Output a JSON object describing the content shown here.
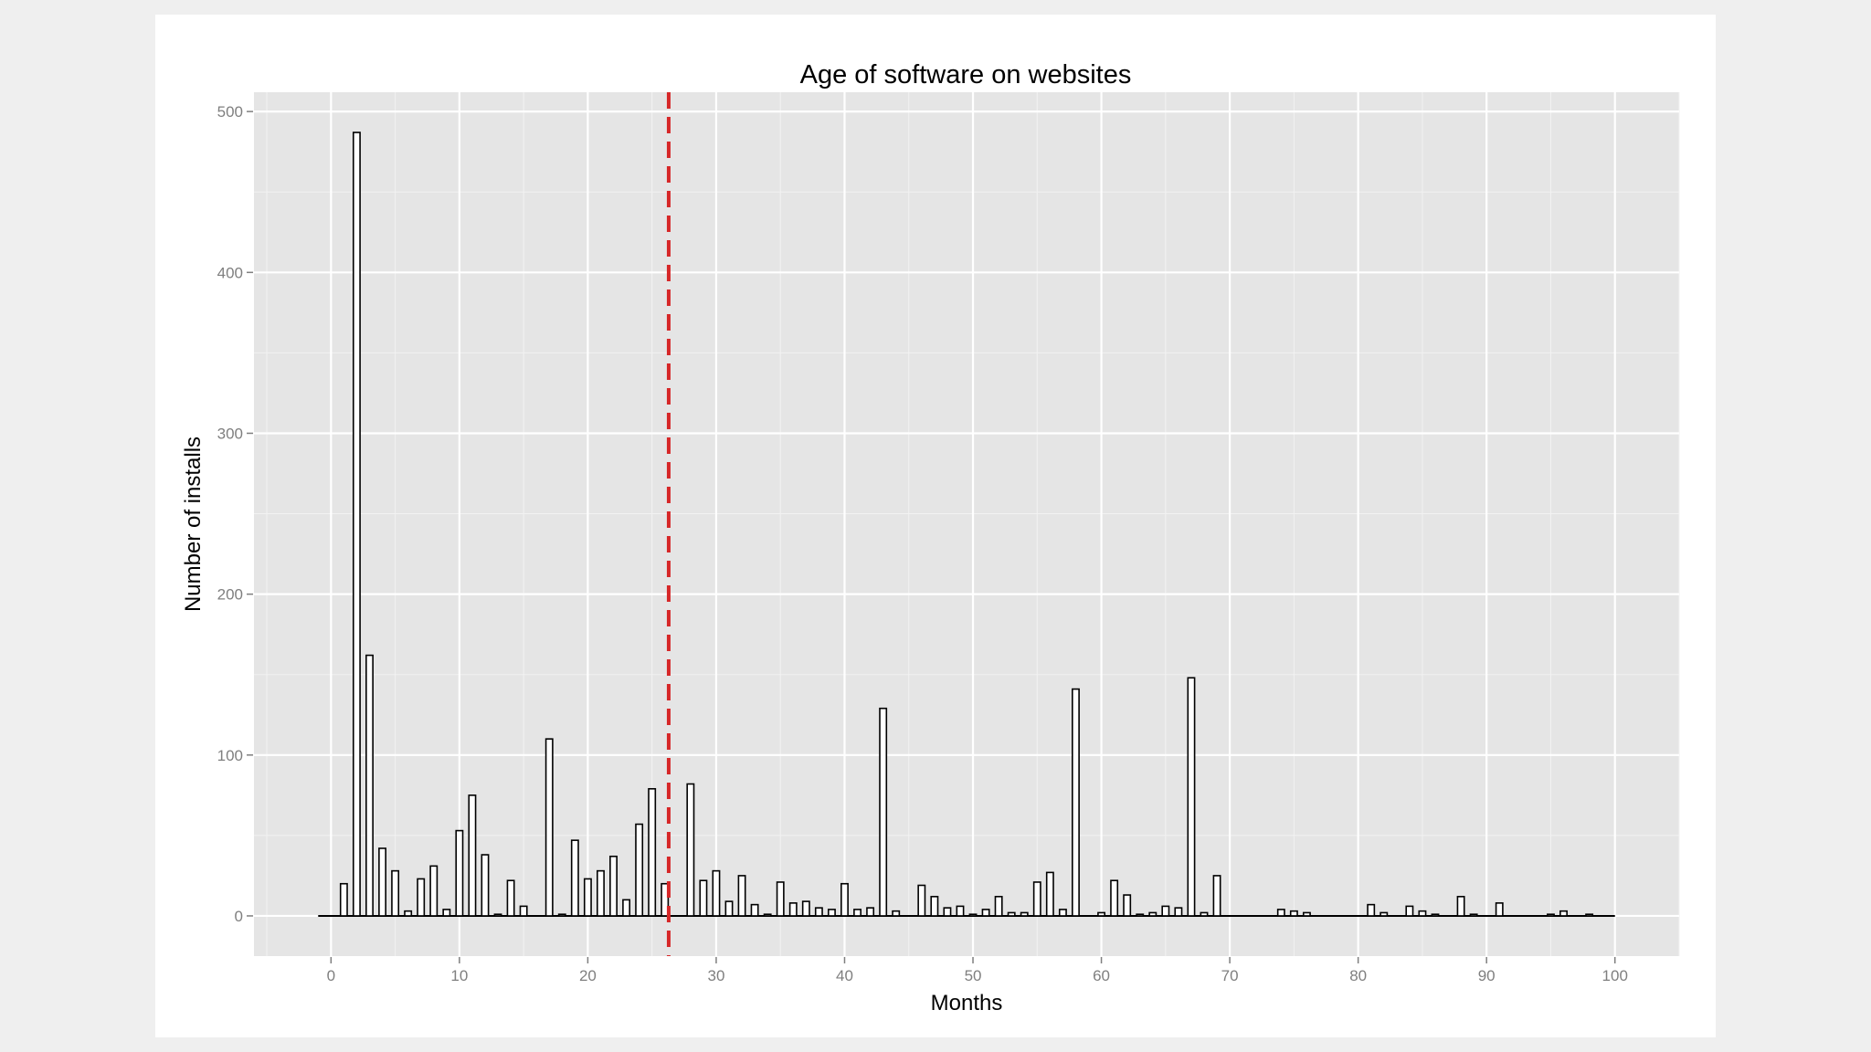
{
  "chart_data": {
    "type": "bar",
    "title": "Age of software on websites",
    "xlabel": "Months",
    "ylabel": "Number of installs",
    "xlim": [
      -6,
      105
    ],
    "ylim": [
      -25,
      512
    ],
    "x_ticks": [
      0,
      10,
      20,
      30,
      40,
      50,
      60,
      70,
      80,
      90,
      100
    ],
    "y_ticks": [
      0,
      100,
      200,
      300,
      400,
      500
    ],
    "grid": true,
    "reference_line": {
      "x": 26.3,
      "color": "#d62728",
      "style": "dashed"
    },
    "baseline": {
      "from": -1,
      "to": 100
    },
    "x": [
      1,
      2,
      3,
      4,
      5,
      6,
      7,
      8,
      9,
      10,
      11,
      12,
      13,
      14,
      15,
      17,
      18,
      19,
      20,
      21,
      22,
      23,
      24,
      25,
      26,
      28,
      29,
      30,
      31,
      32,
      33,
      34,
      35,
      36,
      37,
      38,
      39,
      40,
      41,
      42,
      43,
      44,
      46,
      47,
      48,
      49,
      50,
      51,
      52,
      53,
      54,
      55,
      56,
      57,
      58,
      60,
      61,
      62,
      63,
      64,
      65,
      66,
      67,
      68,
      69,
      74,
      75,
      76,
      81,
      82,
      84,
      85,
      86,
      88,
      89,
      91,
      95,
      96,
      98
    ],
    "values": [
      20,
      487,
      162,
      42,
      28,
      3,
      23,
      31,
      4,
      53,
      75,
      38,
      1,
      22,
      6,
      110,
      1,
      47,
      23,
      28,
      37,
      10,
      57,
      79,
      20,
      82,
      22,
      28,
      9,
      25,
      7,
      1,
      21,
      8,
      9,
      5,
      4,
      20,
      4,
      5,
      129,
      3,
      19,
      12,
      5,
      6,
      1,
      4,
      12,
      2,
      2,
      21,
      27,
      4,
      141,
      2,
      22,
      13,
      1,
      2,
      6,
      5,
      148,
      2,
      25,
      4,
      3,
      2,
      7,
      2,
      6,
      3,
      1,
      12,
      1,
      8,
      1,
      3,
      1
    ]
  },
  "colors": {
    "panel": "#e5e5e5",
    "grid": "#f2f2f2",
    "bar_fill": "#ffffff",
    "bar_stroke": "#000000",
    "reference": "#d62728"
  }
}
